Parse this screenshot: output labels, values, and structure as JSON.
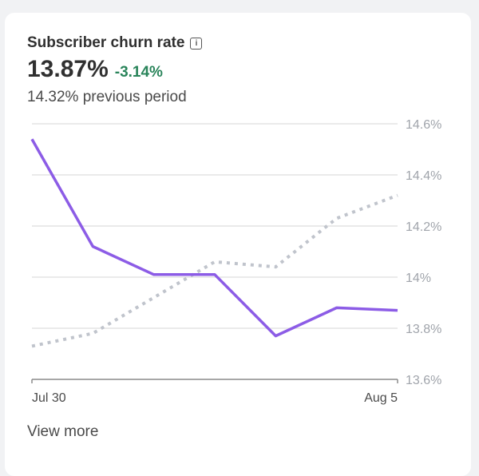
{
  "card": {
    "title": "Subscriber churn rate",
    "value": "13.87%",
    "delta": "-3.14%",
    "previous": "14.32% previous period",
    "view_more": "View more"
  },
  "colors": {
    "current": "#8c5ce6",
    "previous": "#c0c4cc",
    "delta": "#29845a"
  },
  "chart_data": {
    "type": "line",
    "x_tick_labels": [
      "Jul 30",
      "Aug 5"
    ],
    "y_tick_labels": [
      "14.6%",
      "14.4%",
      "14.2%",
      "14%",
      "13.8%",
      "13.6%"
    ],
    "y_ticks": [
      14.6,
      14.4,
      14.2,
      14.0,
      13.8,
      13.6
    ],
    "ylim": [
      13.6,
      14.6
    ],
    "grid": true,
    "y_axis_position": "right",
    "series": [
      {
        "style": "solid",
        "values": [
          14.54,
          14.12,
          14.01,
          14.01,
          13.77,
          13.88,
          13.87
        ]
      },
      {
        "style": "dotted",
        "values": [
          13.73,
          13.78,
          13.92,
          14.06,
          14.04,
          14.23,
          14.32
        ]
      }
    ]
  }
}
